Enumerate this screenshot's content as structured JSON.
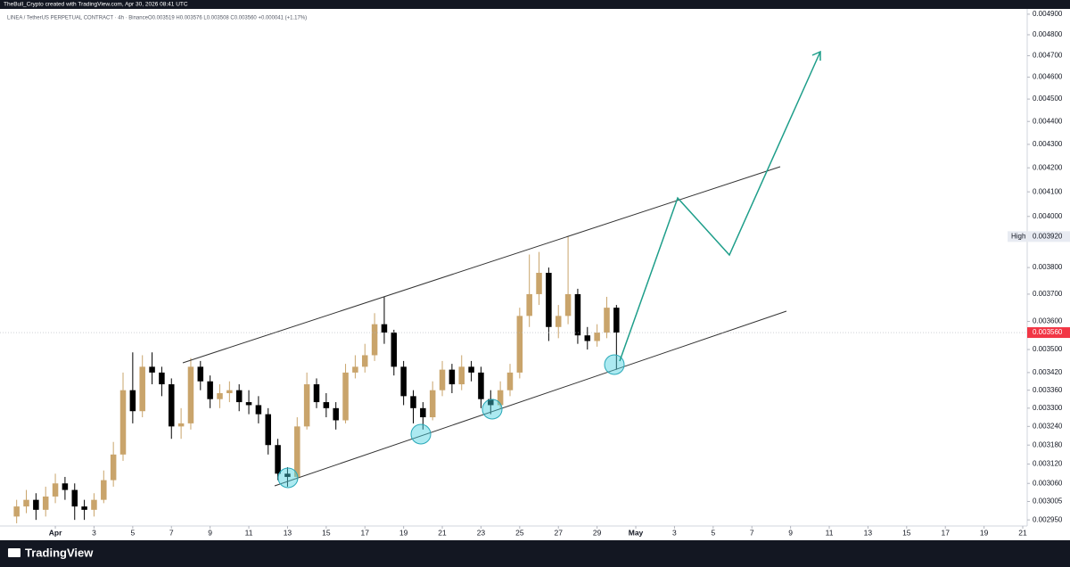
{
  "header": {
    "attribution": "TheBull_Crypto created with TradingView.com, Apr 30, 2026 08:41 UTC"
  },
  "chart_data": {
    "type": "candlestick",
    "symbol": "LINEA / TetherUS PERPETUAL CONTRACT · 4h · Binance",
    "legend": "O0.003519 H0.003576 L0.003508 C0.003560 +0.000041 (+1.17%)",
    "x": [
      -2,
      -1.5,
      -1,
      -0.5,
      0,
      0.5,
      1,
      1.5,
      2,
      2.5,
      3,
      3.5,
      4,
      4.5,
      5,
      5.5,
      6,
      6.5,
      7,
      7.5,
      8,
      8.5,
      9,
      9.5,
      10,
      10.5,
      11,
      11.5,
      12,
      12.5,
      13,
      13.5,
      14,
      14.5,
      15,
      15.5,
      16,
      16.5,
      17,
      17.5,
      18,
      18.5,
      19,
      19.5,
      20,
      20.5,
      21,
      21.5,
      22,
      22.5,
      23,
      23.5,
      24,
      24.5,
      25,
      25.5,
      26,
      26.5,
      27,
      27.5,
      28,
      28.5,
      29
    ],
    "open": [
      0.00296,
      0.00299,
      0.00301,
      0.00298,
      0.00302,
      0.00306,
      0.00304,
      0.00299,
      0.00298,
      0.00301,
      0.00307,
      0.00315,
      0.00336,
      0.00329,
      0.00344,
      0.00342,
      0.00338,
      0.00324,
      0.00325,
      0.00344,
      0.00339,
      0.00333,
      0.00335,
      0.00336,
      0.00332,
      0.00331,
      0.00328,
      0.00318,
      0.00309,
      0.00308,
      0.00324,
      0.00338,
      0.00332,
      0.0033,
      0.00326,
      0.00342,
      0.00344,
      0.00348,
      0.00359,
      0.00356,
      0.00344,
      0.00334,
      0.0033,
      0.00327,
      0.00336,
      0.00343,
      0.00338,
      0.00344,
      0.00342,
      0.00333,
      0.00331,
      0.00336,
      0.00342,
      0.00362,
      0.0037,
      0.00378,
      0.00358,
      0.00362,
      0.0037,
      0.00355,
      0.00353,
      0.00356,
      0.00365
    ],
    "high": [
      0.00301,
      0.00304,
      0.00303,
      0.00305,
      0.00309,
      0.00308,
      0.00306,
      0.00301,
      0.00303,
      0.0031,
      0.00319,
      0.00342,
      0.00349,
      0.00348,
      0.00349,
      0.00344,
      0.0034,
      0.0033,
      0.00347,
      0.00346,
      0.00341,
      0.00338,
      0.00339,
      0.00338,
      0.00336,
      0.00334,
      0.0033,
      0.0032,
      0.00311,
      0.00327,
      0.00342,
      0.0034,
      0.00335,
      0.00332,
      0.00345,
      0.00348,
      0.00352,
      0.00363,
      0.00369,
      0.00357,
      0.00346,
      0.00336,
      0.00332,
      0.00339,
      0.00346,
      0.00345,
      0.00348,
      0.00346,
      0.00344,
      0.00336,
      0.00339,
      0.00345,
      0.00365,
      0.00385,
      0.00386,
      0.0038,
      0.00366,
      0.00392,
      0.00372,
      0.00358,
      0.00359,
      0.00369,
      0.00366
    ],
    "low": [
      0.00294,
      0.00297,
      0.00295,
      0.00296,
      0.003,
      0.00301,
      0.00295,
      0.00295,
      0.00296,
      0.003,
      0.00305,
      0.00313,
      0.00325,
      0.00327,
      0.00338,
      0.00334,
      0.0032,
      0.0032,
      0.00323,
      0.00336,
      0.0033,
      0.0033,
      0.00332,
      0.00329,
      0.00328,
      0.00325,
      0.00315,
      0.00307,
      0.00305,
      0.00307,
      0.00323,
      0.0033,
      0.00327,
      0.00323,
      0.00325,
      0.0034,
      0.00342,
      0.00346,
      0.00352,
      0.00341,
      0.00331,
      0.00325,
      0.00323,
      0.00326,
      0.00334,
      0.00335,
      0.00336,
      0.00339,
      0.0033,
      0.00328,
      0.0033,
      0.00334,
      0.0034,
      0.00358,
      0.00366,
      0.00353,
      0.00354,
      0.00359,
      0.00352,
      0.0035,
      0.00351,
      0.00354,
      0.00343
    ],
    "close": [
      0.00299,
      0.00301,
      0.00298,
      0.00302,
      0.00306,
      0.00304,
      0.00299,
      0.00298,
      0.00301,
      0.00307,
      0.00315,
      0.00336,
      0.00329,
      0.00344,
      0.00342,
      0.00338,
      0.00324,
      0.00325,
      0.00344,
      0.00339,
      0.00333,
      0.00335,
      0.00336,
      0.00332,
      0.00331,
      0.00328,
      0.00318,
      0.00309,
      0.00308,
      0.00324,
      0.00338,
      0.00332,
      0.0033,
      0.00326,
      0.00342,
      0.00344,
      0.00348,
      0.00359,
      0.00356,
      0.00344,
      0.00334,
      0.0033,
      0.00327,
      0.00336,
      0.00343,
      0.00338,
      0.00344,
      0.00342,
      0.00333,
      0.00331,
      0.00336,
      0.00342,
      0.00362,
      0.0037,
      0.00378,
      0.00358,
      0.00362,
      0.0037,
      0.00355,
      0.00353,
      0.00356,
      0.00365,
      0.00356
    ],
    "up_color": "#c9a46b",
    "down_color": "#000000",
    "log_scale": true,
    "grid": false,
    "xlim": [
      -2.86,
      50.23
    ],
    "xticks": [
      {
        "value": 0,
        "label": "Apr"
      },
      {
        "value": 2,
        "label": "3"
      },
      {
        "value": 4,
        "label": "5"
      },
      {
        "value": 6,
        "label": "7"
      },
      {
        "value": 8,
        "label": "9"
      },
      {
        "value": 10,
        "label": "11"
      },
      {
        "value": 12,
        "label": "13"
      },
      {
        "value": 14,
        "label": "15"
      },
      {
        "value": 16,
        "label": "17"
      },
      {
        "value": 18,
        "label": "19"
      },
      {
        "value": 20,
        "label": "21"
      },
      {
        "value": 22,
        "label": "23"
      },
      {
        "value": 24,
        "label": "25"
      },
      {
        "value": 26,
        "label": "27"
      },
      {
        "value": 28,
        "label": "29"
      },
      {
        "value": 30,
        "label": "May"
      },
      {
        "value": 32,
        "label": "3"
      },
      {
        "value": 34,
        "label": "5"
      },
      {
        "value": 36,
        "label": "7"
      },
      {
        "value": 38,
        "label": "9"
      },
      {
        "value": 40,
        "label": "11"
      },
      {
        "value": 42,
        "label": "13"
      },
      {
        "value": 44,
        "label": "15"
      },
      {
        "value": 46,
        "label": "17"
      },
      {
        "value": 48,
        "label": "19"
      },
      {
        "value": 50,
        "label": "21"
      }
    ],
    "ylim": [
      0.002932,
      0.004926
    ],
    "yticks": [
      {
        "value": 0.0049,
        "label": "0.004900"
      },
      {
        "value": 0.0048,
        "label": "0.004800"
      },
      {
        "value": 0.0047,
        "label": "0.004700"
      },
      {
        "value": 0.0046,
        "label": "0.004600"
      },
      {
        "value": 0.0045,
        "label": "0.004500"
      },
      {
        "value": 0.0044,
        "label": "0.004400"
      },
      {
        "value": 0.0043,
        "label": "0.004300"
      },
      {
        "value": 0.0042,
        "label": "0.004200"
      },
      {
        "value": 0.0041,
        "label": "0.004100"
      },
      {
        "value": 0.004,
        "label": "0.004000"
      },
      {
        "value": 0.0038,
        "label": "0.003800"
      },
      {
        "value": 0.0037,
        "label": "0.003700"
      },
      {
        "value": 0.0036,
        "label": "0.003600"
      },
      {
        "value": 0.0035,
        "label": "0.003500"
      },
      {
        "value": 0.00342,
        "label": "0.003420"
      },
      {
        "value": 0.00336,
        "label": "0.003360"
      },
      {
        "value": 0.0033,
        "label": "0.003300"
      },
      {
        "value": 0.00324,
        "label": "0.003240"
      },
      {
        "value": 0.00318,
        "label": "0.003180"
      },
      {
        "value": 0.00312,
        "label": "0.003120"
      },
      {
        "value": 0.00306,
        "label": "0.003060"
      },
      {
        "value": 0.003005,
        "label": "0.003005"
      },
      {
        "value": 0.00295,
        "label": "0.002950"
      }
    ],
    "last_price": {
      "value": 0.00356,
      "label": "0.003560",
      "color": "#f23645"
    },
    "high_marker": {
      "text": "High",
      "value": 0.00392,
      "label": "0.003920"
    }
  },
  "footer": {
    "brand": "TradingView"
  }
}
